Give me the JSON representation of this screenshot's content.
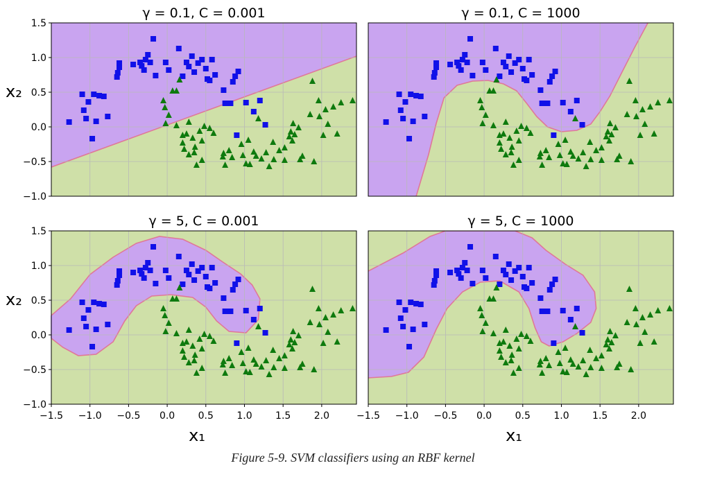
{
  "figure": {
    "caption": "Figure 5-9. SVM classifiers using an RBF kernel"
  },
  "colors": {
    "class_a_region": "#c9a4f0",
    "class_b_region": "#cfe0a8",
    "square_marker": "#1010e8",
    "triangle_marker": "#0e7a0e",
    "boundary": "#e07898"
  },
  "chart_data": [
    {
      "type": "scatter",
      "title": "γ = 0.1, C = 0.001",
      "xlabel": "",
      "ylabel": "x₂",
      "xlim": [
        -1.5,
        2.45
      ],
      "ylim": [
        -1.0,
        1.5
      ],
      "xticks": [],
      "yticks": [
        "1.5",
        "1.0",
        "0.5",
        "0.0",
        "−0.5",
        "−1.0"
      ],
      "grid": true,
      "decision_boundary": [
        [
          -1.5,
          -0.58
        ],
        [
          2.45,
          1.02
        ]
      ]
    },
    {
      "type": "scatter",
      "title": "γ = 0.1, C = 1000",
      "xlabel": "",
      "ylabel": "",
      "xlim": [
        -1.5,
        2.45
      ],
      "ylim": [
        -1.0,
        1.5
      ],
      "xticks": [],
      "yticks": [],
      "grid": true,
      "decision_boundary": [
        [
          -0.88,
          -1.0
        ],
        [
          -0.72,
          -0.4
        ],
        [
          -0.62,
          0.05
        ],
        [
          -0.52,
          0.42
        ],
        [
          -0.35,
          0.6
        ],
        [
          -0.15,
          0.66
        ],
        [
          0.05,
          0.67
        ],
        [
          0.25,
          0.62
        ],
        [
          0.42,
          0.52
        ],
        [
          0.55,
          0.34
        ],
        [
          0.68,
          0.15
        ],
        [
          0.82,
          0.0
        ],
        [
          1.0,
          -0.07
        ],
        [
          1.2,
          -0.05
        ],
        [
          1.38,
          0.04
        ],
        [
          1.5,
          0.22
        ],
        [
          1.63,
          0.45
        ],
        [
          1.78,
          0.78
        ],
        [
          1.95,
          1.15
        ],
        [
          2.12,
          1.5
        ]
      ]
    },
    {
      "type": "scatter",
      "title": "γ = 5, C = 0.001",
      "xlabel": "x₁",
      "ylabel": "x₂",
      "xlim": [
        -1.5,
        2.45
      ],
      "ylim": [
        -1.0,
        1.5
      ],
      "xticks": [
        "−1.5",
        "−1.0",
        "−0.5",
        "0.0",
        "0.5",
        "1.0",
        "1.5",
        "2.0"
      ],
      "yticks": [
        "1.5",
        "1.0",
        "0.5",
        "0.0",
        "−0.5",
        "−1.0"
      ],
      "grid": true,
      "decision_boundary": [
        [
          -1.5,
          0.28
        ],
        [
          -1.25,
          0.52
        ],
        [
          -1.0,
          0.87
        ],
        [
          -0.7,
          1.12
        ],
        [
          -0.4,
          1.32
        ],
        [
          -0.1,
          1.42
        ],
        [
          0.2,
          1.38
        ],
        [
          0.5,
          1.22
        ],
        [
          0.72,
          1.05
        ],
        [
          0.95,
          0.88
        ],
        [
          1.1,
          0.72
        ],
        [
          1.2,
          0.52
        ],
        [
          1.18,
          0.22
        ],
        [
          1.02,
          0.03
        ],
        [
          0.8,
          0.05
        ],
        [
          0.64,
          0.2
        ],
        [
          0.5,
          0.4
        ],
        [
          0.33,
          0.54
        ],
        [
          0.05,
          0.58
        ],
        [
          -0.2,
          0.56
        ],
        [
          -0.4,
          0.42
        ],
        [
          -0.55,
          0.2
        ],
        [
          -0.7,
          -0.1
        ],
        [
          -0.92,
          -0.28
        ],
        [
          -1.15,
          -0.3
        ],
        [
          -1.35,
          -0.18
        ],
        [
          -1.5,
          -0.05
        ]
      ]
    },
    {
      "type": "scatter",
      "title": "γ = 5, C = 1000",
      "xlabel": "x₁",
      "ylabel": "",
      "xlim": [
        -1.5,
        2.45
      ],
      "ylim": [
        -1.0,
        1.5
      ],
      "xticks": [
        "−1.5",
        "−1.0",
        "−0.5",
        "0.0",
        "0.5",
        "1.0",
        "1.5",
        "2.0"
      ],
      "yticks": [],
      "grid": true,
      "decision_boundary": [
        [
          -1.5,
          0.92
        ],
        [
          -1.05,
          1.18
        ],
        [
          -0.7,
          1.42
        ],
        [
          -0.5,
          1.5
        ],
        [
          0.4,
          1.5
        ],
        [
          0.62,
          1.4
        ],
        [
          0.8,
          1.22
        ],
        [
          1.05,
          1.02
        ],
        [
          1.28,
          0.86
        ],
        [
          1.43,
          0.62
        ],
        [
          1.45,
          0.38
        ],
        [
          1.38,
          0.18
        ],
        [
          1.2,
          0.02
        ],
        [
          1.02,
          -0.1
        ],
        [
          0.84,
          -0.16
        ],
        [
          0.74,
          -0.1
        ],
        [
          0.66,
          0.1
        ],
        [
          0.58,
          0.38
        ],
        [
          0.45,
          0.62
        ],
        [
          0.2,
          0.78
        ],
        [
          -0.05,
          0.76
        ],
        [
          -0.28,
          0.62
        ],
        [
          -0.48,
          0.38
        ],
        [
          -0.62,
          0.08
        ],
        [
          -0.78,
          -0.32
        ],
        [
          -0.98,
          -0.54
        ],
        [
          -1.2,
          -0.6
        ],
        [
          -1.5,
          -0.62
        ]
      ]
    }
  ],
  "points": {
    "squares": [
      [
        -1.27,
        0.07
      ],
      [
        -1.1,
        0.47
      ],
      [
        -1.08,
        0.24
      ],
      [
        -1.05,
        0.12
      ],
      [
        -1.02,
        0.36
      ],
      [
        -0.95,
        0.47
      ],
      [
        -0.92,
        0.08
      ],
      [
        -0.97,
        -0.17
      ],
      [
        -0.88,
        0.45
      ],
      [
        -0.82,
        0.44
      ],
      [
        -0.77,
        0.15
      ],
      [
        -0.62,
        0.86
      ],
      [
        -0.64,
        0.78
      ],
      [
        -0.65,
        0.72
      ],
      [
        -0.62,
        0.92
      ],
      [
        -0.44,
        0.9
      ],
      [
        -0.35,
        0.93
      ],
      [
        -0.33,
        0.88
      ],
      [
        -0.3,
        0.82
      ],
      [
        -0.28,
        0.97
      ],
      [
        -0.25,
        1.04
      ],
      [
        -0.22,
        0.93
      ],
      [
        -0.18,
        1.27
      ],
      [
        -0.15,
        0.74
      ],
      [
        -0.02,
        0.93
      ],
      [
        0.02,
        0.82
      ],
      [
        0.15,
        1.13
      ],
      [
        0.2,
        0.73
      ],
      [
        0.25,
        0.93
      ],
      [
        0.28,
        0.87
      ],
      [
        0.32,
        1.02
      ],
      [
        0.35,
        0.79
      ],
      [
        0.4,
        0.92
      ],
      [
        0.45,
        0.97
      ],
      [
        0.5,
        0.84
      ],
      [
        0.52,
        0.69
      ],
      [
        0.55,
        0.67
      ],
      [
        0.58,
        0.97
      ],
      [
        0.62,
        0.75
      ],
      [
        0.73,
        0.53
      ],
      [
        0.75,
        0.34
      ],
      [
        0.85,
        0.65
      ],
      [
        0.88,
        0.73
      ],
      [
        0.82,
        0.34
      ],
      [
        0.92,
        0.8
      ],
      [
        0.9,
        -0.12
      ],
      [
        1.02,
        0.35
      ],
      [
        1.12,
        0.22
      ],
      [
        1.2,
        0.38
      ],
      [
        1.27,
        0.03
      ]
    ],
    "triangles": [
      [
        0.07,
        0.52
      ],
      [
        0.12,
        0.52
      ],
      [
        0.16,
        0.68
      ],
      [
        -0.03,
        0.28
      ],
      [
        -0.05,
        0.38
      ],
      [
        0.02,
        0.17
      ],
      [
        -0.02,
        0.05
      ],
      [
        0.12,
        0.02
      ],
      [
        0.2,
        -0.12
      ],
      [
        0.28,
        0.07
      ],
      [
        0.25,
        -0.1
      ],
      [
        0.33,
        -0.16
      ],
      [
        0.36,
        -0.29
      ],
      [
        0.45,
        -0.2
      ],
      [
        0.48,
        0.01
      ],
      [
        0.42,
        -0.06
      ],
      [
        0.55,
        -0.02
      ],
      [
        0.28,
        -0.4
      ],
      [
        0.35,
        -0.37
      ],
      [
        0.22,
        -0.32
      ],
      [
        0.2,
        -0.23
      ],
      [
        0.38,
        -0.55
      ],
      [
        0.45,
        -0.48
      ],
      [
        0.6,
        -0.09
      ],
      [
        0.72,
        -0.43
      ],
      [
        0.75,
        -0.55
      ],
      [
        0.73,
        -0.38
      ],
      [
        0.84,
        -0.44
      ],
      [
        0.8,
        -0.34
      ],
      [
        0.96,
        -0.25
      ],
      [
        0.98,
        -0.41
      ],
      [
        1.05,
        -0.19
      ],
      [
        1.12,
        -0.36
      ],
      [
        1.15,
        -0.42
      ],
      [
        1.02,
        -0.53
      ],
      [
        1.07,
        -0.54
      ],
      [
        1.22,
        -0.46
      ],
      [
        1.18,
        0.12
      ],
      [
        1.28,
        -0.37
      ],
      [
        1.32,
        -0.57
      ],
      [
        1.37,
        -0.22
      ],
      [
        1.38,
        -0.47
      ],
      [
        1.45,
        -0.34
      ],
      [
        1.52,
        -0.3
      ],
      [
        1.52,
        -0.48
      ],
      [
        1.58,
        -0.14
      ],
      [
        1.62,
        -0.2
      ],
      [
        1.65,
        -0.11
      ],
      [
        1.63,
        0.05
      ],
      [
        1.6,
        -0.07
      ],
      [
        1.7,
        -0.01
      ],
      [
        1.72,
        -0.47
      ],
      [
        1.75,
        -0.42
      ],
      [
        1.88,
        0.66
      ],
      [
        1.9,
        -0.5
      ],
      [
        1.96,
        0.38
      ],
      [
        1.97,
        0.15
      ],
      [
        2.08,
        0.04
      ],
      [
        2.05,
        0.25
      ],
      [
        2.02,
        -0.12
      ],
      [
        2.15,
        0.29
      ],
      [
        2.25,
        0.35
      ],
      [
        2.4,
        0.38
      ],
      [
        2.2,
        -0.1
      ],
      [
        1.85,
        0.18
      ]
    ]
  }
}
